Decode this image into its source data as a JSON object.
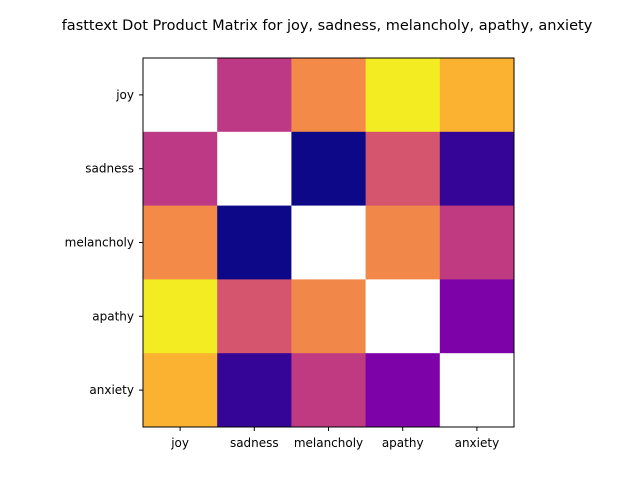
{
  "chart_data": {
    "type": "heatmap",
    "title": "fasttext Dot Product Matrix for joy, sadness, melancholy, apathy, anxiety",
    "x_categories": [
      "joy",
      "sadness",
      "melancholy",
      "apathy",
      "anxiety"
    ],
    "y_categories": [
      "joy",
      "sadness",
      "melancholy",
      "apathy",
      "anxiety"
    ],
    "values": [
      [
        null,
        0.45,
        0.72,
        0.97,
        0.83
      ],
      [
        0.45,
        null,
        0.0,
        0.55,
        0.08
      ],
      [
        0.72,
        0.0,
        null,
        0.71,
        0.46
      ],
      [
        0.97,
        0.55,
        0.71,
        null,
        0.25
      ],
      [
        0.83,
        0.08,
        0.46,
        0.25,
        null
      ]
    ],
    "value_range": [
      0,
      1
    ],
    "colormap": "plasma",
    "diagonal_color": "#ffffff",
    "colorbar": false,
    "grid": false,
    "xlabel": "",
    "ylabel": ""
  }
}
